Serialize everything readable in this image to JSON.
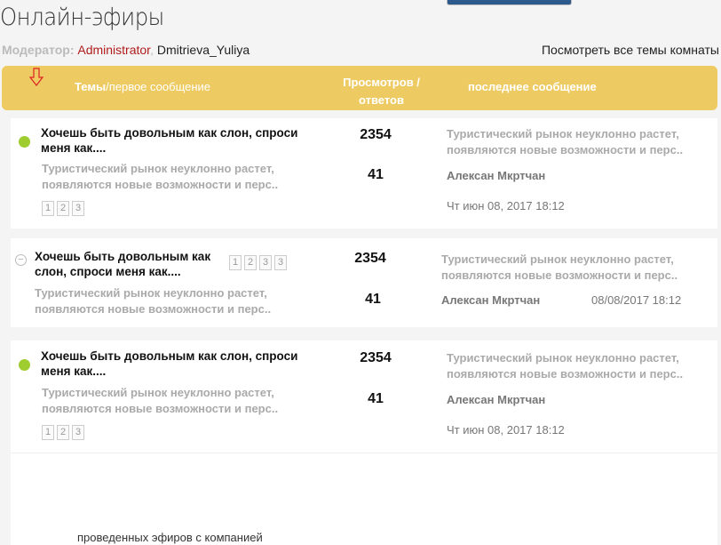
{
  "page": {
    "title": "Онлайн-эфиры",
    "moderator_label": "Модератор:",
    "moderators": [
      "Administrator",
      "Dmitrieva_Yuliya"
    ],
    "view_all": "Посмотреть все темы комнаты"
  },
  "header": {
    "topics_bold": "Темы",
    "topics_rest": "/первое сообщение",
    "views_line1": "Просмотров /",
    "views_line2": "ответов",
    "last": "последнее сообщение",
    "accent": "#eecb62"
  },
  "topics": [
    {
      "title": "Хочешь быть довольным как  слон, спроси меня как....",
      "preview": "Туристический рынок неуклонно растет, появляются новые возможности и перс..",
      "pages": [
        "1",
        "2",
        "3"
      ],
      "views": "2354",
      "replies": "41",
      "last_preview": "Туристический рынок неуклонно растет, появляются новые возможности и перс..",
      "last_author": "Алексан Мкртчан",
      "last_date": "Чт июн 08, 2017 18:12",
      "status": "new"
    },
    {
      "title": "Хочешь быть довольным как слон, спроси меня как....",
      "preview": "Туристический рынок неуклонно растет, появляются новые возможности и перс..",
      "pages": [
        "1",
        "2",
        "3",
        "3"
      ],
      "views": "2354",
      "replies": "41",
      "last_preview": "Туристический рынок неуклонно растет, появляются новые возможности и перс..",
      "last_author": "Алексан Мкртчан",
      "last_date": "08/08/2017 18:12",
      "status": "read"
    },
    {
      "title": "Хочешь быть довольным как  слон, спроси меня как....",
      "preview": "Туристический рынок неуклонно растет, появляются новые возможности и перс..",
      "pages": [
        "1",
        "2",
        "3"
      ],
      "views": "2354",
      "replies": "41",
      "last_preview": "Туристический рынок неуклонно растет, появляются новые возможности и перс..",
      "last_author": "Алексан Мкртчан",
      "last_date": "Чт июн 08, 2017 18:12",
      "status": "new"
    }
  ],
  "footer": {
    "text": "проведенных эфиров с компанией"
  }
}
